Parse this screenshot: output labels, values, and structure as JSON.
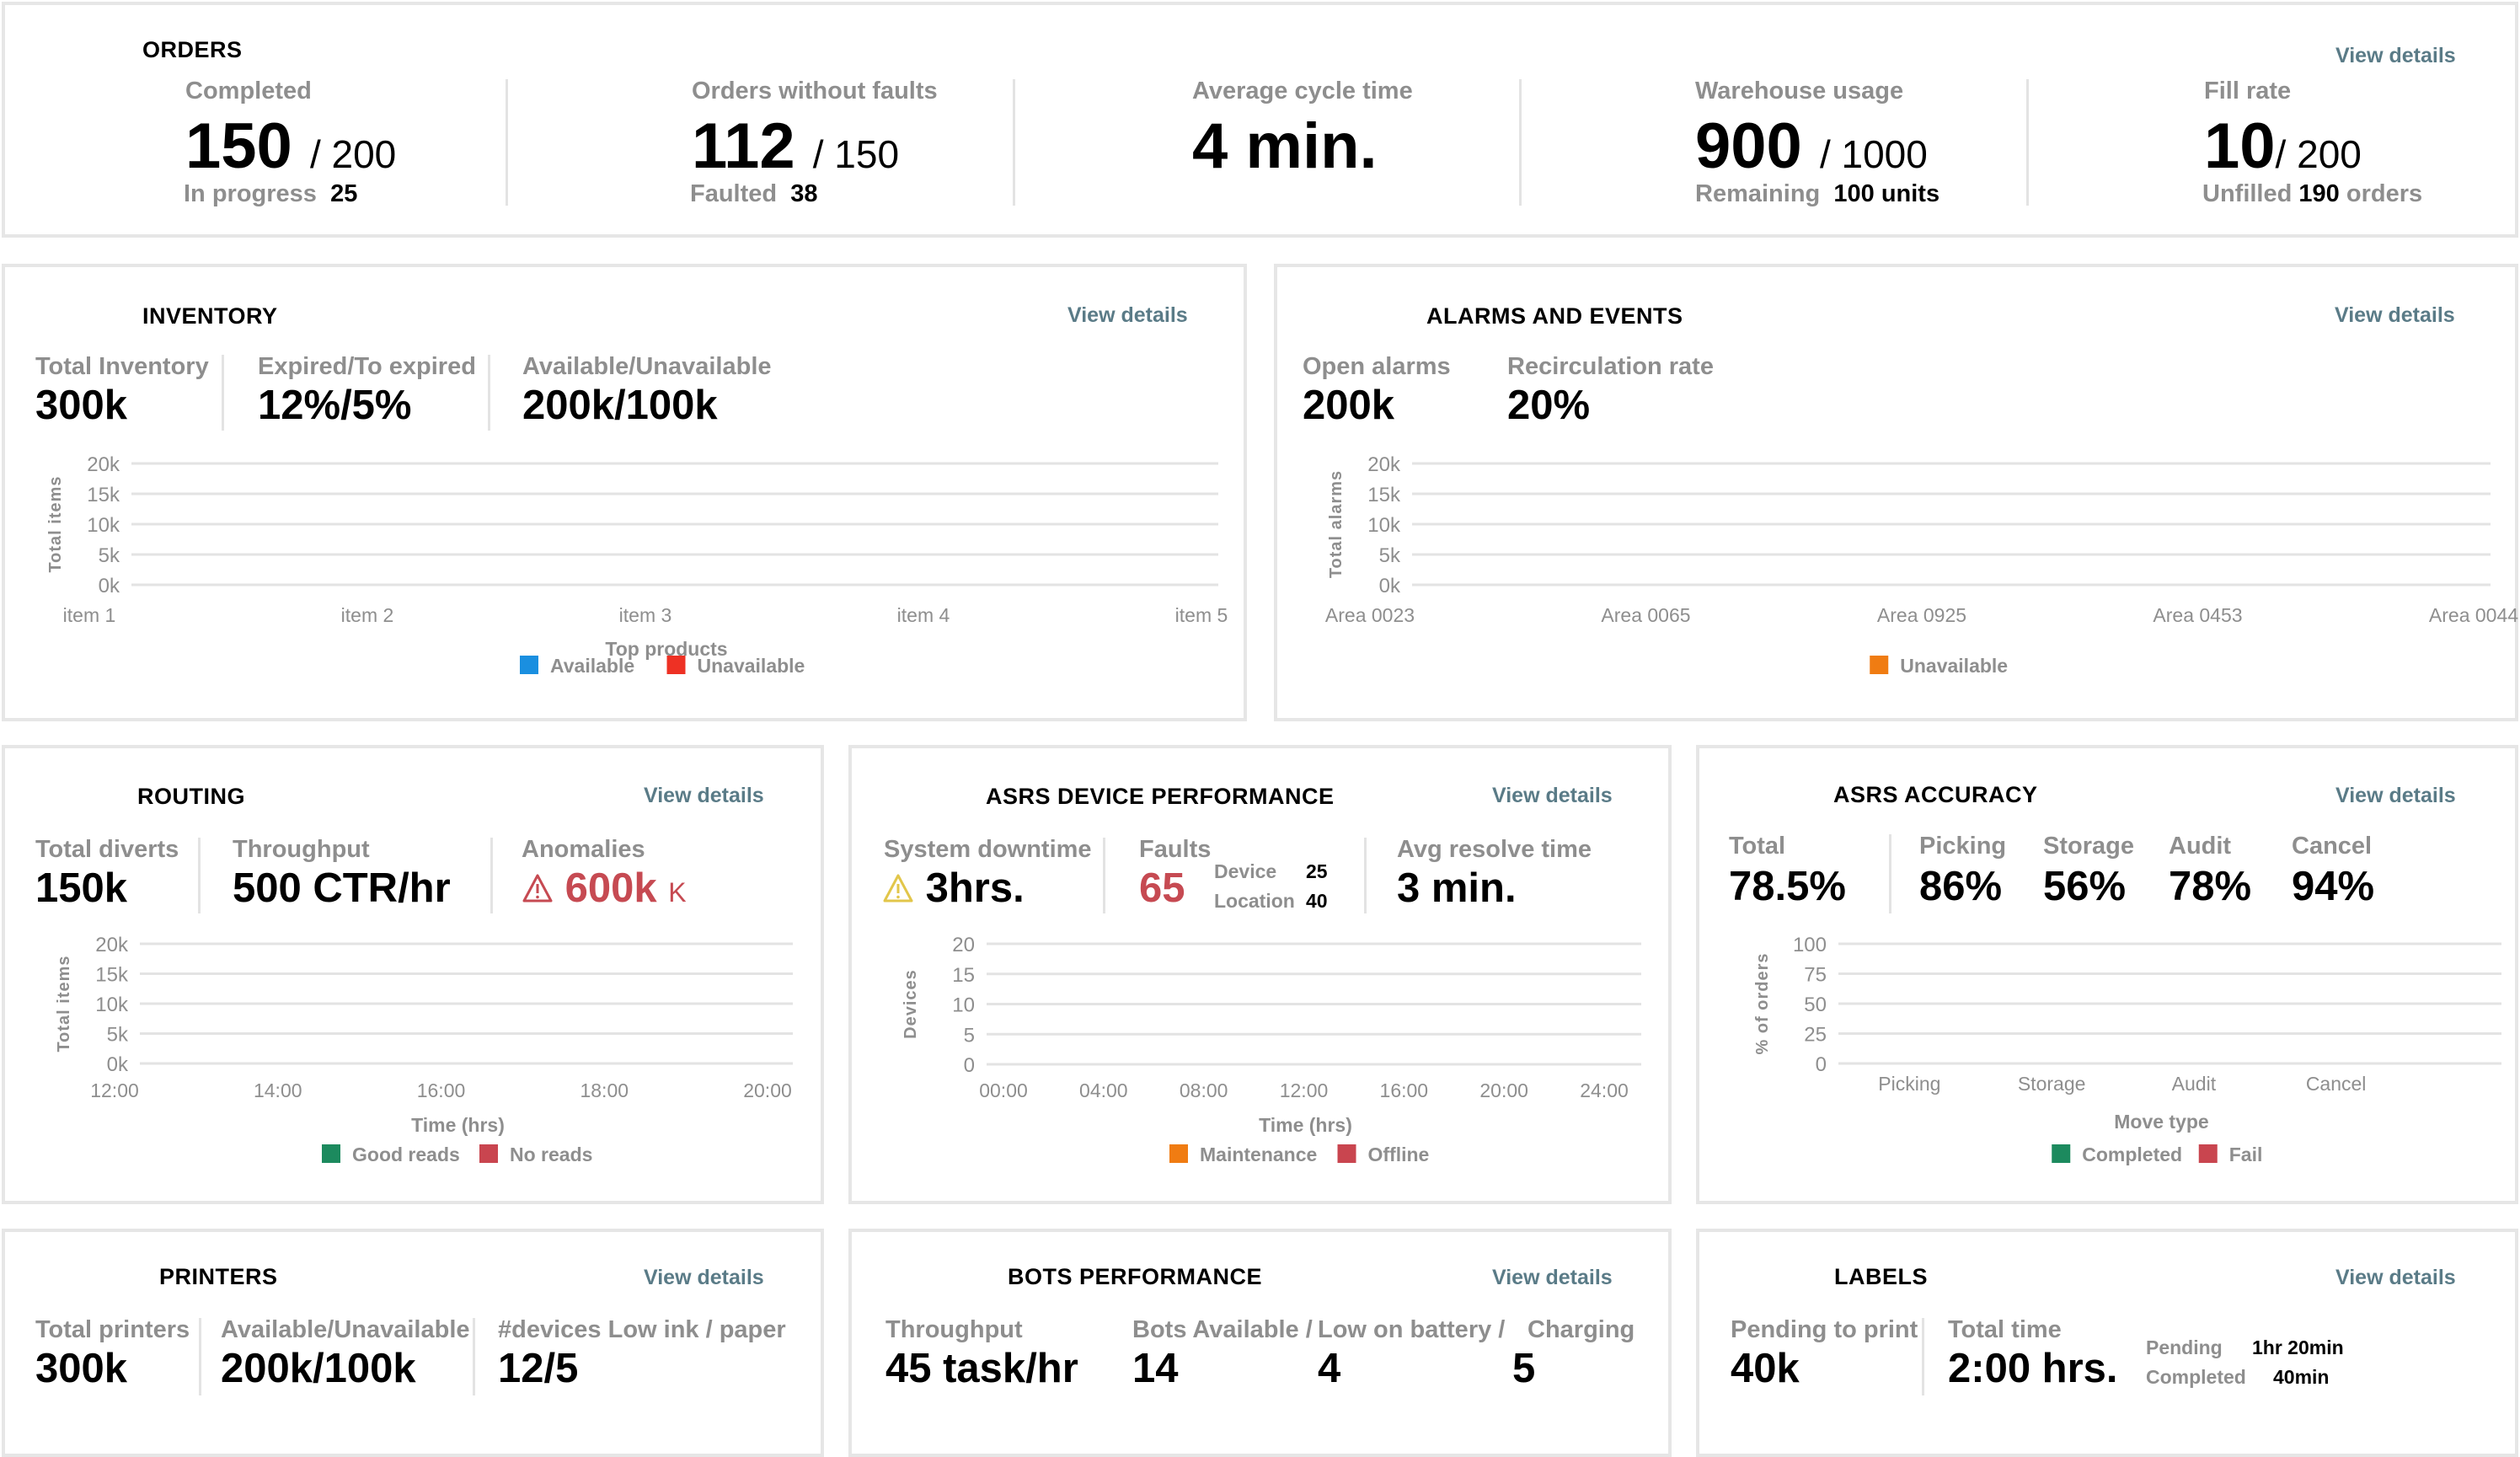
{
  "view_details_label": "View details",
  "orders": {
    "title": "ORDERS",
    "completed": {
      "label": "Completed",
      "value": "150",
      "total": "/ 200",
      "sub_label": "In progress",
      "sub_value": "25"
    },
    "without_faults": {
      "label": "Orders without faults",
      "value": "112",
      "total": "/ 150",
      "sub_label": "Faulted",
      "sub_value": "38"
    },
    "cycle_time": {
      "label": "Average cycle time",
      "value": "4 min."
    },
    "warehouse": {
      "label": "Warehouse usage",
      "value": "900",
      "total": "/ 1000",
      "sub_label": "Remaining",
      "sub_value": "100 units"
    },
    "fill_rate": {
      "label": "Fill rate",
      "value": "10",
      "total": "/ 200",
      "sub_label": "Unfilled",
      "sub_value": "190",
      "sub_suffix": "orders"
    }
  },
  "inventory": {
    "title": "INVENTORY",
    "metrics": [
      {
        "label": "Total Inventory",
        "value": "300k"
      },
      {
        "label": "Expired/To expired",
        "value": "12%/5%"
      },
      {
        "label": "Available/Unavailable",
        "value": "200k/100k"
      }
    ]
  },
  "alarms": {
    "title": "ALARMS AND EVENTS",
    "metrics": [
      {
        "label": "Open alarms",
        "value": "200k"
      },
      {
        "label": "Recirculation rate",
        "value": "20%"
      }
    ]
  },
  "routing": {
    "title": "ROUTING",
    "metrics": [
      {
        "label": "Total diverts",
        "value": "150k"
      },
      {
        "label": "Throughput",
        "value": "500 CTR/hr"
      },
      {
        "label": "Anomalies",
        "value": "600k",
        "unit": "K",
        "icon": "warning-icon"
      }
    ]
  },
  "asrs_device": {
    "title": "ASRS DEVICE PERFORMANCE",
    "downtime": {
      "label": "System downtime",
      "value": "3hrs.",
      "icon": "warning-icon"
    },
    "faults": {
      "label": "Faults",
      "value": "65",
      "device_label": "Device",
      "device_value": "25",
      "location_label": "Location",
      "location_value": "40"
    },
    "resolve": {
      "label": "Avg resolve time",
      "value": "3 min."
    }
  },
  "asrs_accuracy": {
    "title": "ASRS ACCURACY",
    "total": {
      "label": "Total",
      "value": "78.5%"
    },
    "metrics": [
      {
        "label": "Picking",
        "value": "86%"
      },
      {
        "label": "Storage",
        "value": "56%"
      },
      {
        "label": "Audit",
        "value": "78%"
      },
      {
        "label": "Cancel",
        "value": "94%"
      }
    ]
  },
  "printers": {
    "title": "PRINTERS",
    "metrics": [
      {
        "label": "Total printers",
        "value": "300k"
      },
      {
        "label": "Available/Unavailable",
        "value": "200k/100k"
      },
      {
        "label": "#devices Low ink / paper",
        "value": "12/5"
      }
    ]
  },
  "bots": {
    "title": "BOTS PERFORMANCE",
    "metrics": [
      {
        "label": "Throughput",
        "value": "45 task/hr"
      },
      {
        "label": "Bots Available /",
        "value": "14"
      },
      {
        "label": "Low on battery /",
        "value": "4"
      },
      {
        "label": "Charging",
        "value": "5"
      }
    ]
  },
  "labels": {
    "title": "LABELS",
    "pending_print": {
      "label": "Pending to print",
      "value": "40k"
    },
    "total_time": {
      "label": "Total time",
      "value": "2:00 hrs."
    },
    "breakdown": [
      {
        "label": "Pending",
        "value": "1hr 20min"
      },
      {
        "label": "Completed",
        "value": "40min"
      }
    ]
  },
  "colors": {
    "available": "#1a8fe0",
    "unavailable_red": "#ee3124",
    "unavailable_orange": "#f07c12",
    "good": "#1c8a5e",
    "fail": "#c9454f",
    "warning_yellow": "#e2c64a",
    "anomaly_red": "#c64a52",
    "link": "#5a7b87"
  },
  "chart_data": [
    {
      "id": "inventory",
      "type": "bar",
      "title": "",
      "xlabel": "Top products",
      "ylabel": "Total items",
      "categories": [
        "item 1",
        "item 2",
        "item 3",
        "item 4",
        "item 5"
      ],
      "yticks": [
        "0k",
        "5k",
        "10k",
        "15k",
        "20k"
      ],
      "ylim": [
        0,
        20000
      ],
      "series": [
        {
          "name": "Available",
          "color": "#1a8fe0",
          "values": [
            0,
            0,
            0,
            0,
            0
          ]
        },
        {
          "name": "Unavailable",
          "color": "#ee3124",
          "values": [
            0,
            0,
            0,
            0,
            0
          ]
        }
      ],
      "grid": true,
      "legend": "bottom"
    },
    {
      "id": "alarms",
      "type": "bar",
      "title": "",
      "xlabel": "",
      "ylabel": "Total alarms",
      "categories": [
        "Area 0023",
        "Area 0065",
        "Area 0925",
        "Area 0453",
        "Area 0044"
      ],
      "yticks": [
        "0k",
        "5k",
        "10k",
        "15k",
        "20k"
      ],
      "ylim": [
        0,
        20000
      ],
      "series": [
        {
          "name": "Unavailable",
          "color": "#f07c12",
          "values": [
            0,
            0,
            0,
            0,
            0
          ]
        }
      ],
      "grid": true,
      "legend": "bottom"
    },
    {
      "id": "routing",
      "type": "bar",
      "title": "",
      "xlabel": "Time (hrs)",
      "ylabel": "Total items",
      "categories": [
        "12:00",
        "14:00",
        "16:00",
        "18:00",
        "20:00"
      ],
      "yticks": [
        "0k",
        "5k",
        "10k",
        "15k",
        "20k"
      ],
      "ylim": [
        0,
        20000
      ],
      "series": [
        {
          "name": "Good reads",
          "color": "#1c8a5e",
          "values": [
            0,
            0,
            0,
            0,
            0
          ]
        },
        {
          "name": "No reads",
          "color": "#c9454f",
          "values": [
            0,
            0,
            0,
            0,
            0
          ]
        }
      ],
      "grid": true,
      "legend": "bottom"
    },
    {
      "id": "asrs_device",
      "type": "bar",
      "title": "",
      "xlabel": "Time (hrs)",
      "ylabel": "Devices",
      "categories": [
        "00:00",
        "04:00",
        "08:00",
        "12:00",
        "16:00",
        "20:00",
        "24:00"
      ],
      "yticks": [
        "0",
        "5",
        "10",
        "15",
        "20"
      ],
      "ylim": [
        0,
        20
      ],
      "series": [
        {
          "name": "Maintenance",
          "color": "#f07c12",
          "values": [
            0,
            0,
            0,
            0,
            0,
            0,
            0
          ]
        },
        {
          "name": "Offline",
          "color": "#c9454f",
          "values": [
            0,
            0,
            0,
            0,
            0,
            0,
            0
          ]
        }
      ],
      "grid": true,
      "legend": "bottom"
    },
    {
      "id": "asrs_accuracy",
      "type": "bar",
      "title": "",
      "xlabel": "Move type",
      "ylabel": "% of orders",
      "categories": [
        "Picking",
        "Storage",
        "Audit",
        "Cancel"
      ],
      "yticks": [
        "0",
        "25",
        "50",
        "75",
        "100"
      ],
      "ylim": [
        0,
        100
      ],
      "series": [
        {
          "name": "Completed",
          "color": "#1c8a5e",
          "values": [
            0,
            0,
            0,
            0
          ]
        },
        {
          "name": "Fail",
          "color": "#c9454f",
          "values": [
            0,
            0,
            0,
            0
          ]
        }
      ],
      "grid": true,
      "legend": "bottom"
    }
  ]
}
